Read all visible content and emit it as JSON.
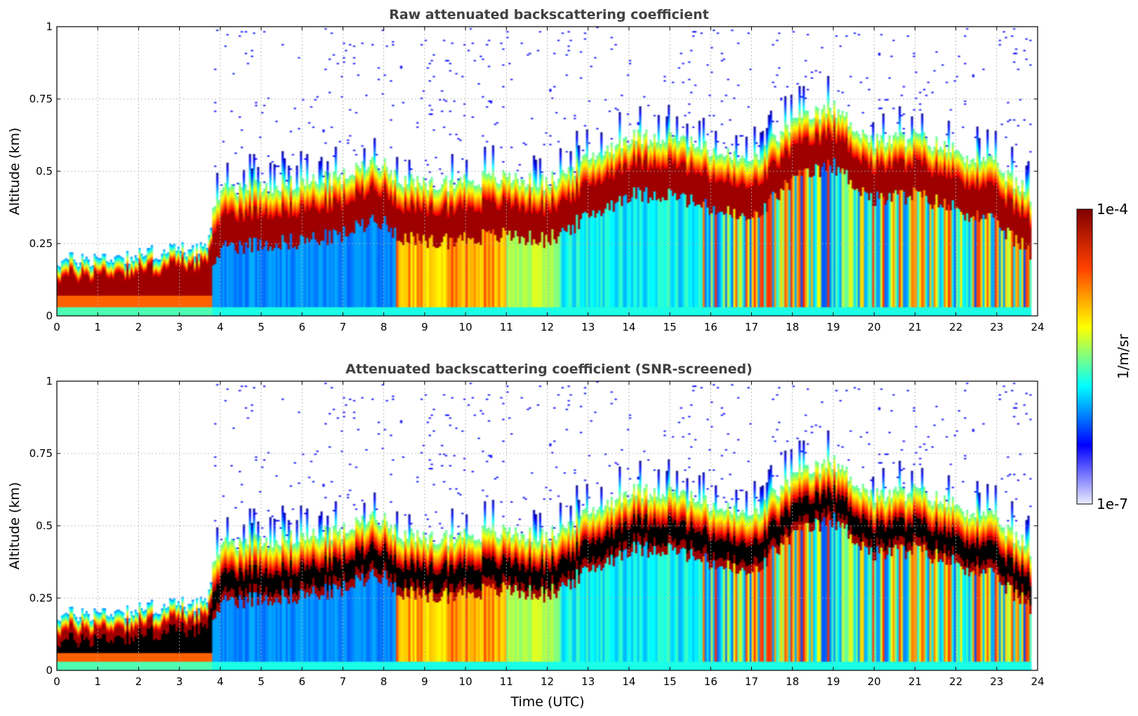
{
  "chart_data": [
    {
      "type": "heatmap",
      "title": "Raw attenuated backscattering coefficient",
      "xlabel": "",
      "ylabel": "Altitude (km)",
      "xlim": [
        0,
        24
      ],
      "ylim": [
        0,
        1
      ],
      "xticks": [
        "0",
        "1",
        "2",
        "3",
        "4",
        "5",
        "6",
        "7",
        "8",
        "9",
        "10",
        "11",
        "12",
        "13",
        "14",
        "15",
        "16",
        "17",
        "18",
        "19",
        "20",
        "21",
        "22",
        "23",
        "24"
      ],
      "yticks": [
        "0",
        "0.25",
        "0.5",
        "0.75",
        "1"
      ],
      "grid": true,
      "screened": false,
      "boundary_layer_top_km": [
        {
          "t": 0,
          "z": 0.13
        },
        {
          "t": 1,
          "z": 0.14
        },
        {
          "t": 2,
          "z": 0.15
        },
        {
          "t": 3,
          "z": 0.17
        },
        {
          "t": 3.7,
          "z": 0.18
        },
        {
          "t": 4,
          "z": 0.32
        },
        {
          "t": 5,
          "z": 0.33
        },
        {
          "t": 6,
          "z": 0.34
        },
        {
          "t": 7,
          "z": 0.36
        },
        {
          "t": 7.8,
          "z": 0.42
        },
        {
          "t": 8.5,
          "z": 0.35
        },
        {
          "t": 9,
          "z": 0.33
        },
        {
          "t": 10,
          "z": 0.35
        },
        {
          "t": 11,
          "z": 0.36
        },
        {
          "t": 12,
          "z": 0.34
        },
        {
          "t": 13,
          "z": 0.42
        },
        {
          "t": 14,
          "z": 0.5
        },
        {
          "t": 15,
          "z": 0.5
        },
        {
          "t": 16,
          "z": 0.45
        },
        {
          "t": 17,
          "z": 0.41
        },
        {
          "t": 18,
          "z": 0.55
        },
        {
          "t": 19,
          "z": 0.6
        },
        {
          "t": 20,
          "z": 0.48
        },
        {
          "t": 21,
          "z": 0.5
        },
        {
          "t": 22,
          "z": 0.45
        },
        {
          "t": 23,
          "z": 0.4
        },
        {
          "t": 23.8,
          "z": 0.3
        }
      ]
    },
    {
      "type": "heatmap",
      "title": "Attenuated backscattering coefficient (SNR-screened)",
      "xlabel": "Time (UTC)",
      "ylabel": "Altitude (km)",
      "xlim": [
        0,
        24
      ],
      "ylim": [
        0,
        1
      ],
      "xticks": [
        "0",
        "1",
        "2",
        "3",
        "4",
        "5",
        "6",
        "7",
        "8",
        "9",
        "10",
        "11",
        "12",
        "13",
        "14",
        "15",
        "16",
        "17",
        "18",
        "19",
        "20",
        "21",
        "22",
        "23",
        "24"
      ],
      "yticks": [
        "0",
        "0.25",
        "0.5",
        "0.75",
        "1"
      ],
      "grid": true,
      "screened": true,
      "boundary_layer_top_km": [
        {
          "t": 0,
          "z": 0.13
        },
        {
          "t": 1,
          "z": 0.14
        },
        {
          "t": 2,
          "z": 0.15
        },
        {
          "t": 3,
          "z": 0.17
        },
        {
          "t": 3.7,
          "z": 0.18
        },
        {
          "t": 4,
          "z": 0.32
        },
        {
          "t": 5,
          "z": 0.33
        },
        {
          "t": 6,
          "z": 0.34
        },
        {
          "t": 7,
          "z": 0.36
        },
        {
          "t": 7.8,
          "z": 0.42
        },
        {
          "t": 8.5,
          "z": 0.35
        },
        {
          "t": 9,
          "z": 0.33
        },
        {
          "t": 10,
          "z": 0.35
        },
        {
          "t": 11,
          "z": 0.36
        },
        {
          "t": 12,
          "z": 0.34
        },
        {
          "t": 13,
          "z": 0.42
        },
        {
          "t": 14,
          "z": 0.5
        },
        {
          "t": 15,
          "z": 0.5
        },
        {
          "t": 16,
          "z": 0.45
        },
        {
          "t": 17,
          "z": 0.41
        },
        {
          "t": 18,
          "z": 0.55
        },
        {
          "t": 19,
          "z": 0.6
        },
        {
          "t": 20,
          "z": 0.48
        },
        {
          "t": 21,
          "z": 0.5
        },
        {
          "t": 22,
          "z": 0.45
        },
        {
          "t": 23,
          "z": 0.4
        },
        {
          "t": 23.8,
          "z": 0.3
        }
      ]
    }
  ],
  "colorbar": {
    "label": "1/m/sr",
    "max_label": "1e-4",
    "min_label": "1e-7",
    "colormap": "jet",
    "colors": [
      "#ececff",
      "#0000ff",
      "#00ffff",
      "#ffff00",
      "#ff4000",
      "#800000"
    ]
  }
}
